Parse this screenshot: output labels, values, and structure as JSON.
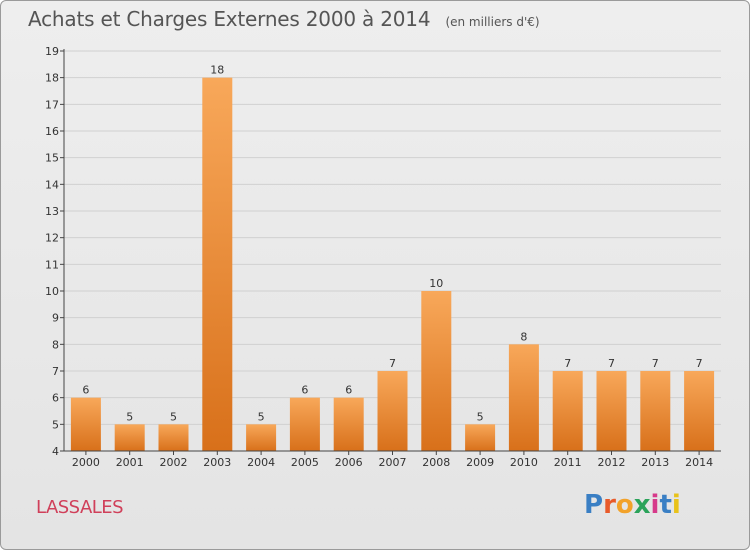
{
  "header": {
    "title": "Achats et Charges Externes 2000 à 2014",
    "unit": "(en milliers d'€)"
  },
  "footer": {
    "place": "LASSALES",
    "logo_text": "Proxiti",
    "logo_colors": [
      "#3a7fc4",
      "#e85a2a",
      "#f2a22a",
      "#2ba35a",
      "#d63a8a",
      "#3a7fc4",
      "#e8c21a"
    ]
  },
  "colors": {
    "bar_top": "#f8a85a",
    "bar_bottom": "#d8701a",
    "axis": "#444444",
    "grid": "#d0d0d0"
  },
  "chart_data": {
    "type": "bar",
    "title": "Achats et Charges Externes 2000 à 2014",
    "categories": [
      "2000",
      "2001",
      "2002",
      "2003",
      "2004",
      "2005",
      "2006",
      "2007",
      "2008",
      "2009",
      "2010",
      "2011",
      "2012",
      "2013",
      "2014"
    ],
    "values": [
      6,
      5,
      5,
      18,
      5,
      6,
      6,
      7,
      10,
      5,
      8,
      7,
      7,
      7,
      7
    ],
    "ylim": [
      4,
      19
    ],
    "yticks": [
      4,
      5,
      6,
      7,
      8,
      9,
      10,
      11,
      12,
      13,
      14,
      15,
      16,
      17,
      18,
      19
    ],
    "xlabel": "",
    "ylabel": "",
    "grid": true,
    "legend": "none"
  }
}
